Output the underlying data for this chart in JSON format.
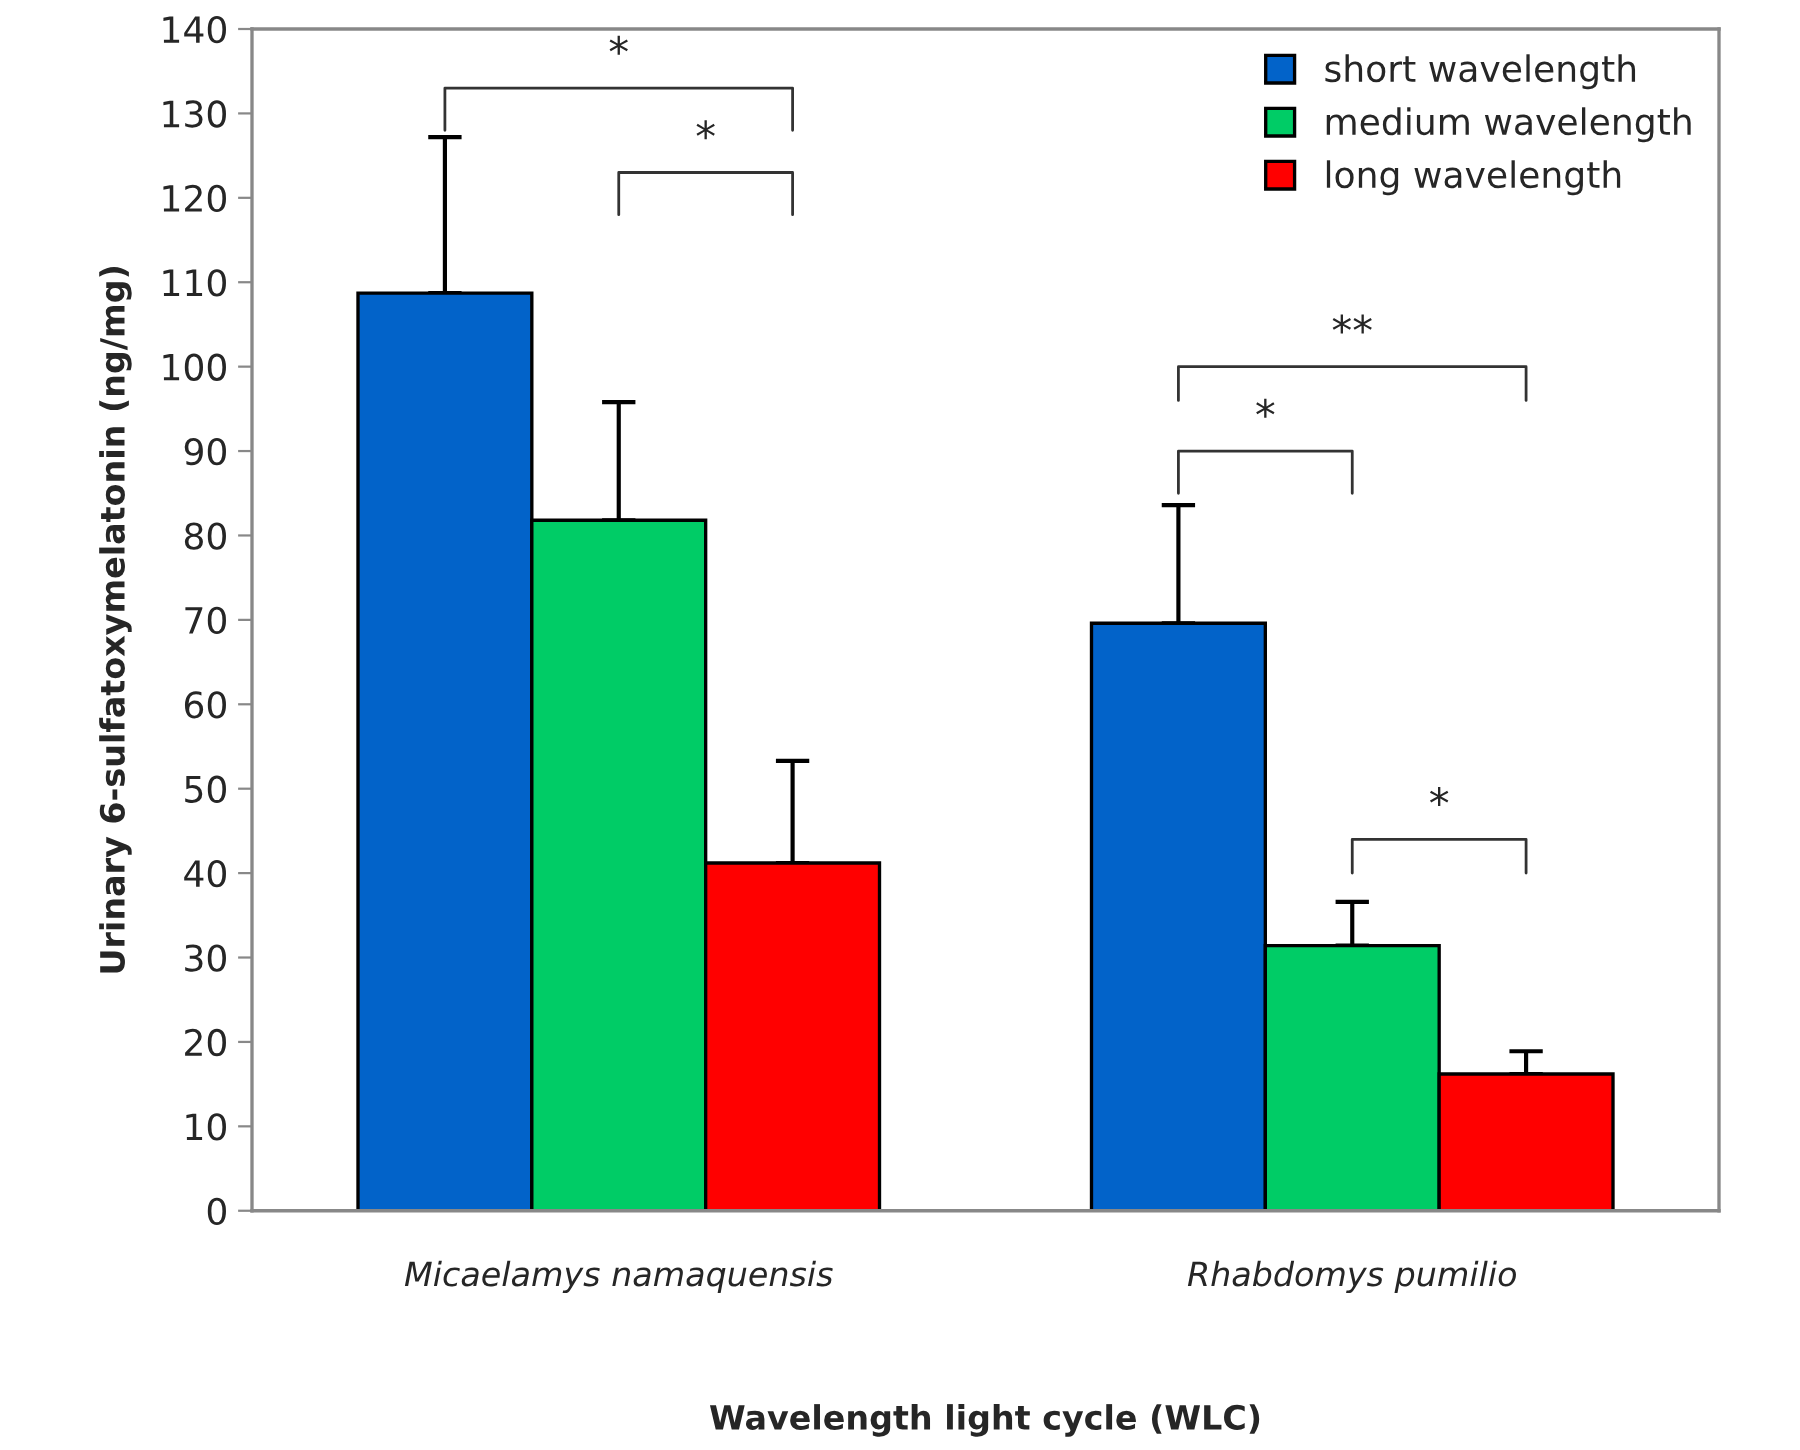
{
  "chart_data": {
    "type": "bar",
    "xlabel": "Wavelength light cycle (WLC)",
    "ylabel": "Urinary 6-sulfatoxymelatonin (ng/mg)",
    "categories": [
      "Micaelamys namaquensis",
      "Rhabdomys pumilio"
    ],
    "series": [
      {
        "name": "short wavelength",
        "color": "#0263c9",
        "values": [
          108.7,
          69.6
        ],
        "errors": [
          [
            108.7,
            127.2
          ],
          [
            69.6,
            83.6
          ]
        ]
      },
      {
        "name": "medium wavelength",
        "color": "#00cc66",
        "values": [
          81.8,
          31.4
        ],
        "errors": [
          [
            81.8,
            95.8
          ],
          [
            31.4,
            36.6
          ]
        ]
      },
      {
        "name": "long wavelength",
        "color": "#ff0000",
        "values": [
          41.2,
          16.2
        ],
        "errors": [
          [
            41.2,
            53.3
          ],
          [
            16.2,
            18.9
          ]
        ]
      }
    ],
    "ylim": [
      0,
      140
    ],
    "yticks": [
      0,
      10,
      20,
      30,
      40,
      50,
      60,
      70,
      80,
      90,
      100,
      110,
      120,
      130,
      140
    ],
    "annotations": [
      "*",
      "*",
      "**",
      "*",
      "*"
    ],
    "legend": "top right",
    "grid": false
  }
}
